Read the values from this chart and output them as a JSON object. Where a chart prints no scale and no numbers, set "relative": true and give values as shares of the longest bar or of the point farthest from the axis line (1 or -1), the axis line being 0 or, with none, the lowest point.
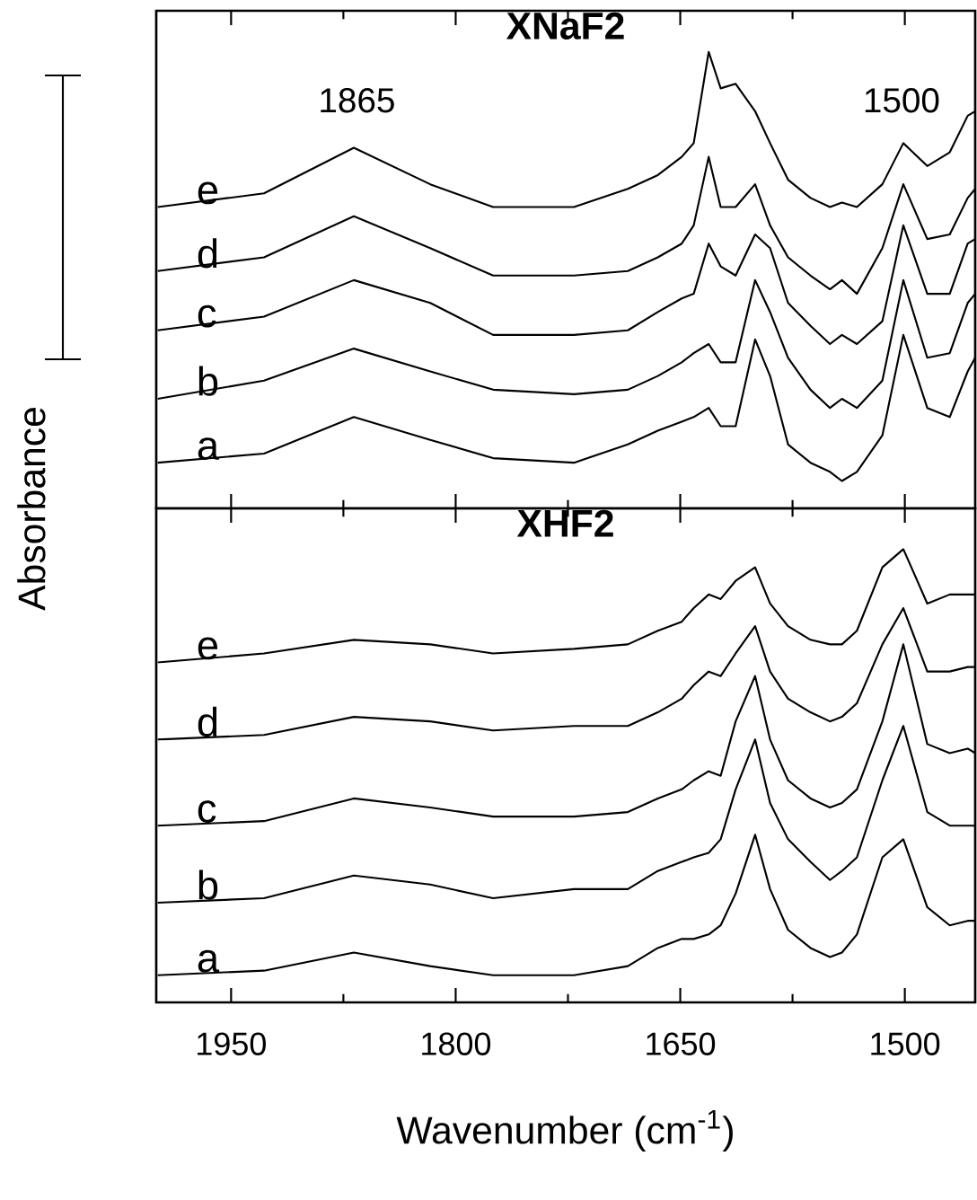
{
  "chart_data": [
    {
      "type": "line",
      "title": "XNaF2",
      "ylabel": "Absorbance",
      "relative": true,
      "marker": "none",
      "x": [
        1999,
        1928,
        1868,
        1817,
        1775,
        1721,
        1685,
        1665,
        1649,
        1641,
        1631,
        1623,
        1613,
        1600,
        1590,
        1578,
        1563,
        1550,
        1542,
        1532,
        1515,
        1501,
        1485,
        1470,
        1458,
        1453
      ],
      "series": [
        {
          "name": "e",
          "color": "#000000",
          "values": [
            0.66,
            0.69,
            0.79,
            0.71,
            0.66,
            0.66,
            0.7,
            0.73,
            0.77,
            0.8,
            1.0,
            0.92,
            0.93,
            0.87,
            0.8,
            0.72,
            0.68,
            0.66,
            0.67,
            0.66,
            0.71,
            0.8,
            0.75,
            0.78,
            0.86,
            0.87
          ]
        },
        {
          "name": "d",
          "color": "#000000",
          "values": [
            0.52,
            0.55,
            0.64,
            0.57,
            0.51,
            0.51,
            0.52,
            0.55,
            0.58,
            0.62,
            0.77,
            0.66,
            0.66,
            0.71,
            0.62,
            0.55,
            0.51,
            0.48,
            0.5,
            0.47,
            0.57,
            0.71,
            0.59,
            0.6,
            0.68,
            0.7
          ]
        },
        {
          "name": "c",
          "color": "#000000",
          "values": [
            0.39,
            0.42,
            0.5,
            0.45,
            0.38,
            0.38,
            0.39,
            0.43,
            0.46,
            0.47,
            0.58,
            0.53,
            0.51,
            0.6,
            0.57,
            0.45,
            0.4,
            0.36,
            0.38,
            0.36,
            0.41,
            0.62,
            0.47,
            0.47,
            0.58,
            0.59
          ]
        },
        {
          "name": "b",
          "color": "#000000",
          "values": [
            0.24,
            0.28,
            0.35,
            0.3,
            0.26,
            0.25,
            0.26,
            0.29,
            0.32,
            0.34,
            0.36,
            0.32,
            0.32,
            0.5,
            0.43,
            0.33,
            0.26,
            0.22,
            0.24,
            0.22,
            0.28,
            0.5,
            0.33,
            0.34,
            0.45,
            0.47
          ]
        },
        {
          "name": "a",
          "color": "#000000",
          "values": [
            0.1,
            0.12,
            0.2,
            0.15,
            0.11,
            0.1,
            0.14,
            0.17,
            0.19,
            0.2,
            0.22,
            0.18,
            0.18,
            0.37,
            0.29,
            0.14,
            0.1,
            0.08,
            0.06,
            0.08,
            0.16,
            0.38,
            0.22,
            0.2,
            0.3,
            0.33
          ]
        }
      ],
      "annotations": [
        "1865",
        "1500"
      ],
      "xlim": [
        2000,
        1453
      ],
      "xticks": [
        1950,
        1800,
        1650,
        1500
      ],
      "tick_labels": false
    },
    {
      "type": "line",
      "title": "XHF2",
      "xlabel": "Wavenumber (cm$^{-1}$)",
      "relative": true,
      "marker": "none",
      "x": [
        1999,
        1928,
        1868,
        1817,
        1775,
        1721,
        1685,
        1665,
        1649,
        1641,
        1631,
        1623,
        1613,
        1600,
        1590,
        1578,
        1563,
        1550,
        1542,
        1532,
        1515,
        1501,
        1485,
        1470,
        1458,
        1453
      ],
      "series": [
        {
          "name": "e",
          "color": "#000000",
          "values": [
            0.75,
            0.77,
            0.8,
            0.79,
            0.77,
            0.78,
            0.79,
            0.82,
            0.84,
            0.87,
            0.9,
            0.89,
            0.93,
            0.96,
            0.88,
            0.83,
            0.8,
            0.79,
            0.79,
            0.82,
            0.96,
            1.0,
            0.88,
            0.9,
            0.9,
            0.9
          ]
        },
        {
          "name": "d",
          "color": "#000000",
          "values": [
            0.58,
            0.59,
            0.63,
            0.62,
            0.6,
            0.61,
            0.61,
            0.64,
            0.67,
            0.7,
            0.73,
            0.72,
            0.77,
            0.83,
            0.73,
            0.67,
            0.64,
            0.62,
            0.63,
            0.66,
            0.79,
            0.87,
            0.73,
            0.73,
            0.74,
            0.74
          ]
        },
        {
          "name": "c",
          "color": "#000000",
          "values": [
            0.39,
            0.4,
            0.45,
            0.43,
            0.41,
            0.41,
            0.42,
            0.45,
            0.47,
            0.49,
            0.51,
            0.5,
            0.62,
            0.72,
            0.58,
            0.49,
            0.45,
            0.43,
            0.44,
            0.47,
            0.62,
            0.79,
            0.57,
            0.55,
            0.56,
            0.55
          ]
        },
        {
          "name": "b",
          "color": "#000000",
          "values": [
            0.22,
            0.23,
            0.28,
            0.26,
            0.23,
            0.25,
            0.25,
            0.29,
            0.31,
            0.32,
            0.33,
            0.36,
            0.47,
            0.58,
            0.44,
            0.36,
            0.31,
            0.27,
            0.29,
            0.32,
            0.49,
            0.61,
            0.42,
            0.39,
            0.39,
            0.39
          ]
        },
        {
          "name": "a",
          "color": "#000000",
          "values": [
            0.06,
            0.07,
            0.11,
            0.08,
            0.06,
            0.06,
            0.08,
            0.12,
            0.14,
            0.14,
            0.15,
            0.17,
            0.24,
            0.37,
            0.25,
            0.16,
            0.12,
            0.1,
            0.11,
            0.15,
            0.32,
            0.36,
            0.21,
            0.17,
            0.18,
            0.18
          ]
        }
      ],
      "xlim": [
        2000,
        1453
      ],
      "xticks": [
        1950,
        1800,
        1650,
        1500
      ],
      "tick_labels": "x"
    }
  ]
}
